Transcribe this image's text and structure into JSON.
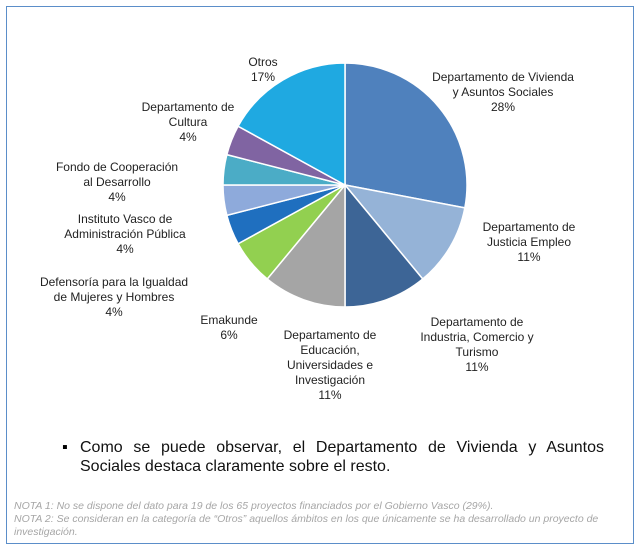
{
  "chart_data": {
    "type": "pie",
    "categories": [
      "Departamento de Vivienda y Asuntos Sociales",
      "Departamento de Justicia Empleo",
      "Departamento de Industria, Comercio y Turismo",
      "Departamento de Educación, Universidades e Investigación",
      "Emakunde",
      "Defensoría para la Igualdad de Mujeres y Hombres",
      "Instituto Vasco de Administración Pública",
      "Fondo de Cooperación al Desarrollo",
      "Departamento de Cultura",
      "Otros"
    ],
    "values": [
      28,
      11,
      11,
      11,
      6,
      4,
      4,
      4,
      4,
      17
    ],
    "value_labels": [
      "28%",
      "11%",
      "11%",
      "11%",
      "6%",
      "4%",
      "4%",
      "4%",
      "4%",
      "17%"
    ],
    "colors": [
      "#4f81bd",
      "#95b3d7",
      "#3d6596",
      "#a5a5a5",
      "#92d050",
      "#1f6fbf",
      "#8eaadb",
      "#4bacc6",
      "#8064a2",
      "#1fa9e1"
    ]
  },
  "bullet": "Como se puede observar, el Departamento de Vivienda y Asuntos Sociales destaca claramente sobre el resto.",
  "notes": [
    "NOTA 1: No se dispone del dato para 19 de los 65 proyectos financiados por el Gobierno Vasco (29%).",
    "NOTA 2: Se consideran en la categoría de “Otros” aquellos ámbitos en los que únicamente se ha desarrollado un proyecto de investigación."
  ]
}
